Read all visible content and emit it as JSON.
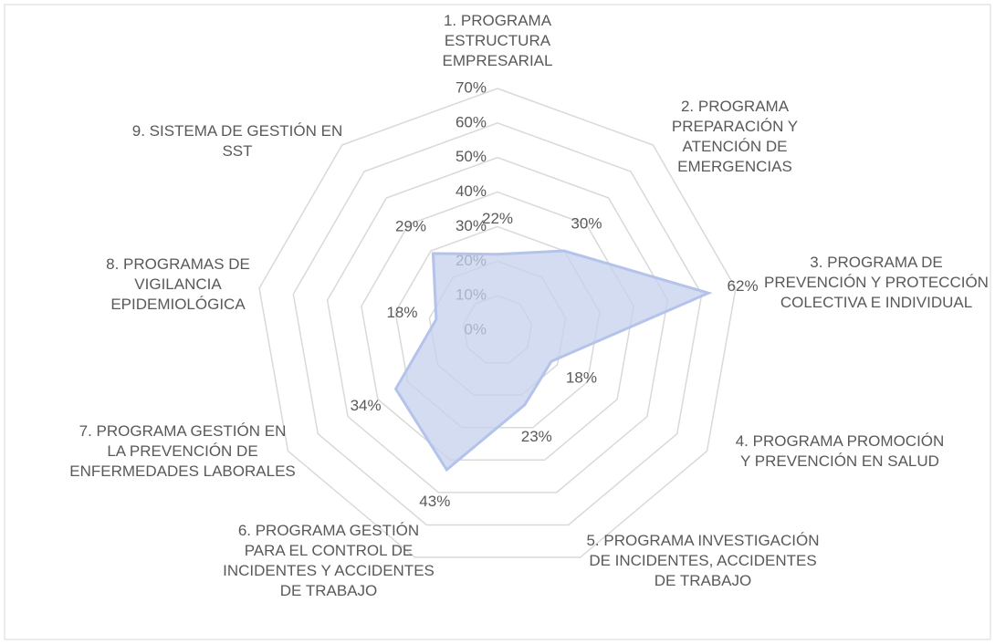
{
  "chart_data": {
    "type": "radar",
    "categories": [
      "1. PROGRAMA ESTRUCTURA EMPRESARIAL",
      "2. PROGRAMA PREPARACIÓN Y ATENCIÓN DE EMERGENCIAS",
      "3. PROGRAMA DE PREVENCIÓN Y PROTECCIÓN COLECTIVA E INDIVIDUAL",
      "4. PROGRAMA PROMOCIÓN Y PREVENCIÓN EN SALUD",
      "5. PROGRAMA INVESTIGACIÓN DE INCIDENTES, ACCIDENTES DE TRABAJO",
      "6. PROGRAMA GESTIÓN PARA EL CONTROL DE INCIDENTES Y ACCIDENTES DE TRABAJO",
      "7. PROGRAMA GESTIÓN EN LA PREVENCIÓN DE ENFERMEDADES LABORALES",
      "8. PROGRAMAS DE VIGILANCIA EPIDEMIOLÓGICA",
      "9. SISTEMA DE GESTIÓN EN SST"
    ],
    "values": [
      22,
      30,
      62,
      18,
      23,
      43,
      34,
      18,
      29
    ],
    "value_labels": [
      "22%",
      "30%",
      "62%",
      "18%",
      "23%",
      "43%",
      "34%",
      "18%",
      "29%"
    ],
    "color": "#c5d0ee",
    "ylim": [
      0,
      70
    ],
    "yticks": [
      {
        "value": 0,
        "label": "0%"
      },
      {
        "value": 10,
        "label": "10%"
      },
      {
        "value": 20,
        "label": "20%"
      },
      {
        "value": 30,
        "label": "30%"
      },
      {
        "value": 40,
        "label": "40%"
      },
      {
        "value": 50,
        "label": "50%"
      },
      {
        "value": 60,
        "label": "60%"
      },
      {
        "value": 70,
        "label": "70%"
      }
    ],
    "grid": true
  }
}
